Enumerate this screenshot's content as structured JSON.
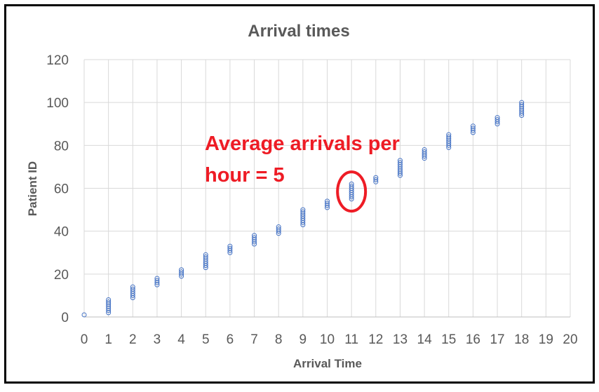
{
  "chart_data": {
    "type": "scatter",
    "title": "Arrival times",
    "xlabel": "Arrival Time",
    "ylabel": "Patient ID",
    "xlim": [
      0,
      20
    ],
    "ylim": [
      0,
      120
    ],
    "xticks": [
      "0",
      "1",
      "2",
      "3",
      "4",
      "5",
      "6",
      "7",
      "8",
      "9",
      "10",
      "11",
      "12",
      "13",
      "14",
      "15",
      "16",
      "17",
      "18",
      "19",
      "20"
    ],
    "yticks": [
      "0",
      "20",
      "40",
      "60",
      "80",
      "100",
      "120"
    ],
    "grid": true,
    "marker": "hollow-circle",
    "series_color": "#4472c4",
    "groups": [
      {
        "x": 0,
        "ids": [
          1,
          1
        ]
      },
      {
        "x": 1,
        "ids": [
          2,
          8
        ]
      },
      {
        "x": 2,
        "ids": [
          9,
          14
        ]
      },
      {
        "x": 3,
        "ids": [
          15,
          18
        ]
      },
      {
        "x": 4,
        "ids": [
          19,
          22
        ]
      },
      {
        "x": 5,
        "ids": [
          23,
          29
        ]
      },
      {
        "x": 6,
        "ids": [
          30,
          33
        ]
      },
      {
        "x": 7,
        "ids": [
          34,
          38
        ]
      },
      {
        "x": 8,
        "ids": [
          39,
          42
        ]
      },
      {
        "x": 9,
        "ids": [
          43,
          50
        ]
      },
      {
        "x": 10,
        "ids": [
          51,
          54
        ]
      },
      {
        "x": 11,
        "ids": [
          55,
          62
        ]
      },
      {
        "x": 12,
        "ids": [
          63,
          65
        ]
      },
      {
        "x": 13,
        "ids": [
          66,
          73
        ]
      },
      {
        "x": 14,
        "ids": [
          74,
          78
        ]
      },
      {
        "x": 15,
        "ids": [
          79,
          85
        ]
      },
      {
        "x": 16,
        "ids": [
          86,
          89
        ]
      },
      {
        "x": 17,
        "ids": [
          90,
          93
        ]
      },
      {
        "x": 18,
        "ids": [
          94,
          100
        ]
      }
    ],
    "annotation": {
      "lines": [
        "Average arrivals per",
        "hour = 5"
      ],
      "color": "#ee1c25",
      "highlight_x": 11
    }
  }
}
